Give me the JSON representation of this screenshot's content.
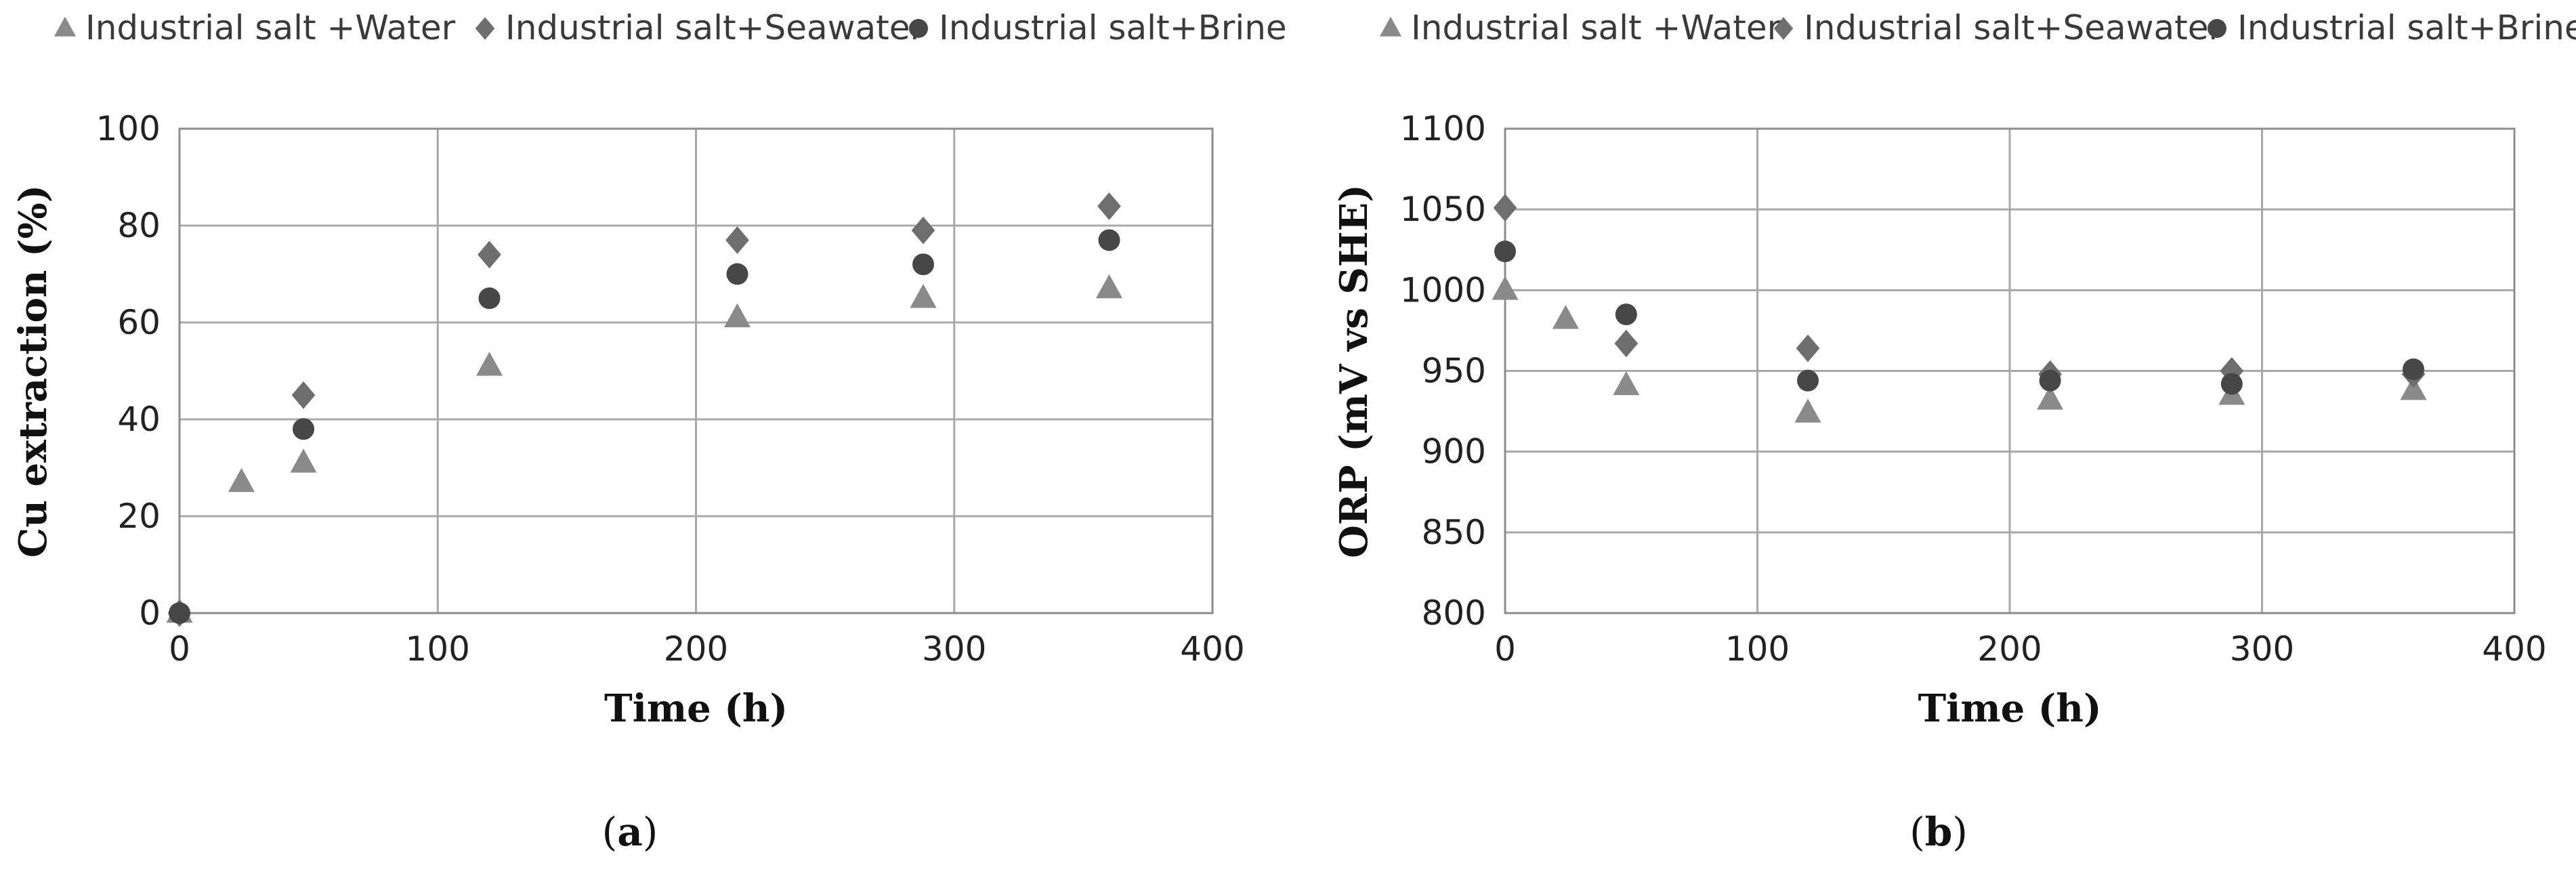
{
  "colors": {
    "water": "#8a8a8a",
    "seawater": "#6e6e6e",
    "brine": "#474747",
    "grid": "#a8a8a8",
    "background": "#ffffff"
  },
  "panels": [
    {
      "label_open": "(",
      "label_letter": "a",
      "label_close": ")"
    },
    {
      "label_open": "(",
      "label_letter": "b",
      "label_close": ")"
    }
  ],
  "chart_data": [
    {
      "type": "scatter",
      "xlabel": "Time (h)",
      "ylabel": "Cu extraction (%)",
      "xlim": [
        0,
        400
      ],
      "ylim": [
        0,
        100
      ],
      "xticks": [
        "0",
        "100",
        "200",
        "300",
        "400"
      ],
      "yticks": [
        "0",
        "20",
        "40",
        "60",
        "80",
        "100"
      ],
      "grid": true,
      "legend_placement": "top",
      "series": [
        {
          "name": "Industrial salt +Water",
          "marker": "triangle",
          "x": [
            0,
            24,
            48,
            120,
            216,
            288,
            360
          ],
          "y": [
            0,
            27,
            31,
            51,
            61,
            65,
            67
          ]
        },
        {
          "name": "Industrial salt+Seawater",
          "marker": "diamond",
          "x": [
            0,
            48,
            120,
            216,
            288,
            360
          ],
          "y": [
            0,
            45,
            74,
            77,
            79,
            84
          ]
        },
        {
          "name": "Industrial salt+Brine",
          "marker": "circle",
          "x": [
            0,
            48,
            120,
            216,
            288,
            360
          ],
          "y": [
            0,
            38,
            65,
            70,
            72,
            77
          ]
        }
      ]
    },
    {
      "type": "scatter",
      "xlabel": "Time (h)",
      "ylabel": "ORP (mV vs SHE)",
      "xlim": [
        0,
        400
      ],
      "ylim": [
        800,
        1100
      ],
      "xticks": [
        "0",
        "100",
        "200",
        "300",
        "400"
      ],
      "yticks": [
        "800",
        "850",
        "900",
        "950",
        "1000",
        "1050",
        "1100"
      ],
      "grid": true,
      "legend_placement": "top",
      "series": [
        {
          "name": "Industrial salt +Water",
          "marker": "triangle",
          "x": [
            0,
            24,
            48,
            120,
            216,
            288,
            360
          ],
          "y": [
            1000,
            982,
            941,
            924,
            932,
            935,
            938
          ]
        },
        {
          "name": "Industrial salt+Seawater",
          "marker": "diamond",
          "x": [
            0,
            48,
            120,
            216,
            288,
            360
          ],
          "y": [
            1051,
            967,
            964,
            948,
            950,
            948
          ]
        },
        {
          "name": "Industrial salt+Brine",
          "marker": "circle",
          "x": [
            0,
            48,
            120,
            216,
            288,
            360
          ],
          "y": [
            1024,
            985,
            944,
            944,
            942,
            951
          ]
        }
      ]
    }
  ]
}
